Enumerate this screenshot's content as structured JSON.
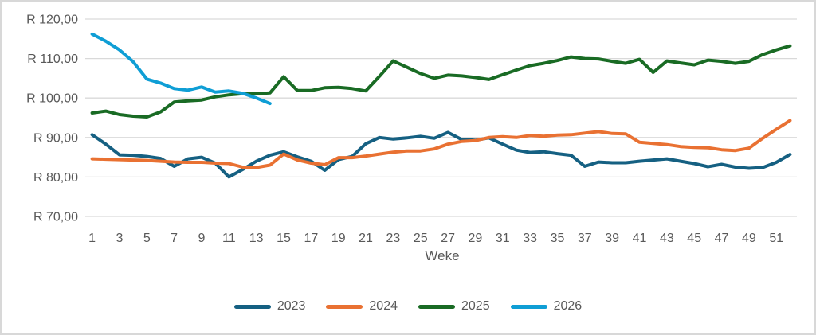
{
  "palette": {
    "grid_line": "#d9d9d9",
    "axis_text": "#595959",
    "frame_border": "#d8d8d8",
    "background": "#ffffff"
  },
  "chart_data": {
    "type": "line",
    "title": "",
    "xlabel": "Weke",
    "ylabel": "",
    "ylim": [
      70,
      120
    ],
    "y_step": 10,
    "grid": "horizontal",
    "legend_position": "bottom",
    "y_ticks": [
      {
        "value": 120,
        "label": "R 120,00"
      },
      {
        "value": 110,
        "label": "R 110,00"
      },
      {
        "value": 100,
        "label": "R 100,00"
      },
      {
        "value": 90,
        "label": "R 90,00"
      },
      {
        "value": 80,
        "label": "R 80,00"
      },
      {
        "value": 70,
        "label": "R 70,00"
      }
    ],
    "x_tick_labels": [
      "1",
      "3",
      "5",
      "7",
      "9",
      "11",
      "13",
      "15",
      "17",
      "19",
      "21",
      "23",
      "25",
      "27",
      "29",
      "31",
      "33",
      "35",
      "37",
      "39",
      "41",
      "43",
      "45",
      "47",
      "49",
      "51"
    ],
    "x_weeks": 52,
    "series": [
      {
        "name": "2023",
        "color": "#156082",
        "values": [
          90.7,
          88.3,
          85.6,
          85.5,
          85.2,
          84.7,
          82.7,
          84.6,
          85.0,
          83.5,
          80.0,
          81.9,
          84.0,
          85.5,
          86.4,
          85.1,
          84.0,
          81.7,
          84.4,
          85.2,
          88.4,
          90.0,
          89.6,
          89.9,
          90.3,
          89.8,
          91.3,
          89.5,
          89.3,
          89.9,
          88.3,
          86.8,
          86.2,
          86.4,
          85.9,
          85.5,
          82.7,
          83.8,
          83.6,
          83.6,
          84.0,
          84.3,
          84.6,
          84.0,
          83.4,
          82.6,
          83.2,
          82.5,
          82.2,
          82.4,
          83.7,
          85.7
        ]
      },
      {
        "name": "2024",
        "color": "#E97132",
        "values": [
          84.6,
          84.5,
          84.4,
          84.3,
          84.2,
          84.0,
          83.8,
          83.7,
          83.7,
          83.5,
          83.4,
          82.5,
          82.4,
          83.0,
          85.8,
          84.3,
          83.5,
          83.1,
          84.9,
          84.9,
          85.3,
          85.8,
          86.3,
          86.6,
          86.6,
          87.1,
          88.3,
          89.0,
          89.2,
          90.0,
          90.2,
          90.0,
          90.5,
          90.3,
          90.6,
          90.7,
          91.1,
          91.5,
          91.0,
          90.9,
          88.8,
          88.5,
          88.2,
          87.7,
          87.5,
          87.4,
          86.9,
          86.7,
          87.3,
          89.8,
          92.1,
          94.3
        ]
      },
      {
        "name": "2025",
        "color": "#196B24",
        "values": [
          96.2,
          96.7,
          95.8,
          95.4,
          95.2,
          96.5,
          99.0,
          99.3,
          99.5,
          100.3,
          100.8,
          101.1,
          101.1,
          101.3,
          105.4,
          101.9,
          101.9,
          102.6,
          102.7,
          102.4,
          101.8,
          105.5,
          109.4,
          107.8,
          106.2,
          105.0,
          105.8,
          105.6,
          105.2,
          104.7,
          105.9,
          107.1,
          108.2,
          108.8,
          109.5,
          110.4,
          110.0,
          109.9,
          109.3,
          108.8,
          109.8,
          106.5,
          109.4,
          108.9,
          108.4,
          109.6,
          109.3,
          108.8,
          109.3,
          111.0,
          112.2,
          113.2
        ]
      },
      {
        "name": "2026",
        "color": "#0F9ED5",
        "values": [
          116.2,
          114.4,
          112.2,
          109.2,
          104.8,
          103.8,
          102.4,
          102.0,
          102.8,
          101.5,
          101.8,
          101.2,
          100.0,
          98.6
        ]
      }
    ]
  }
}
